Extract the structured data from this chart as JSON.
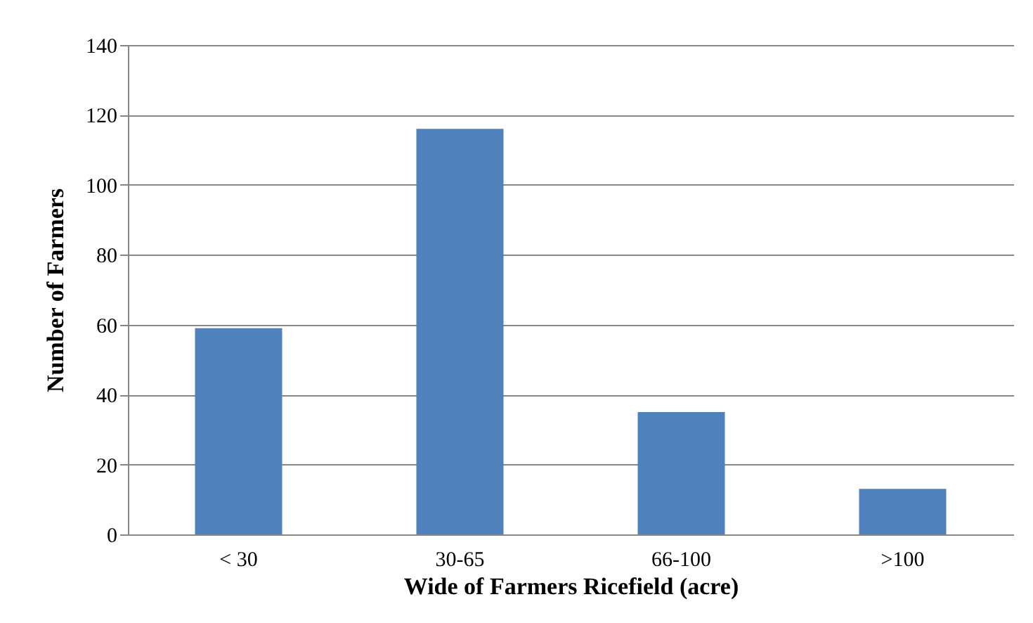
{
  "chart_data": {
    "type": "bar",
    "xlabel": "Wide of Farmers Ricefield (acre)",
    "ylabel": "Number of Farmers",
    "categories": [
      "< 30",
      "30-65",
      "66-100",
      ">100"
    ],
    "values": [
      59,
      116,
      35,
      13
    ],
    "color": "#4f81bd",
    "ylim": [
      0,
      140
    ],
    "yticks": [
      0,
      20,
      40,
      60,
      80,
      100,
      120,
      140
    ],
    "grid": "y"
  }
}
